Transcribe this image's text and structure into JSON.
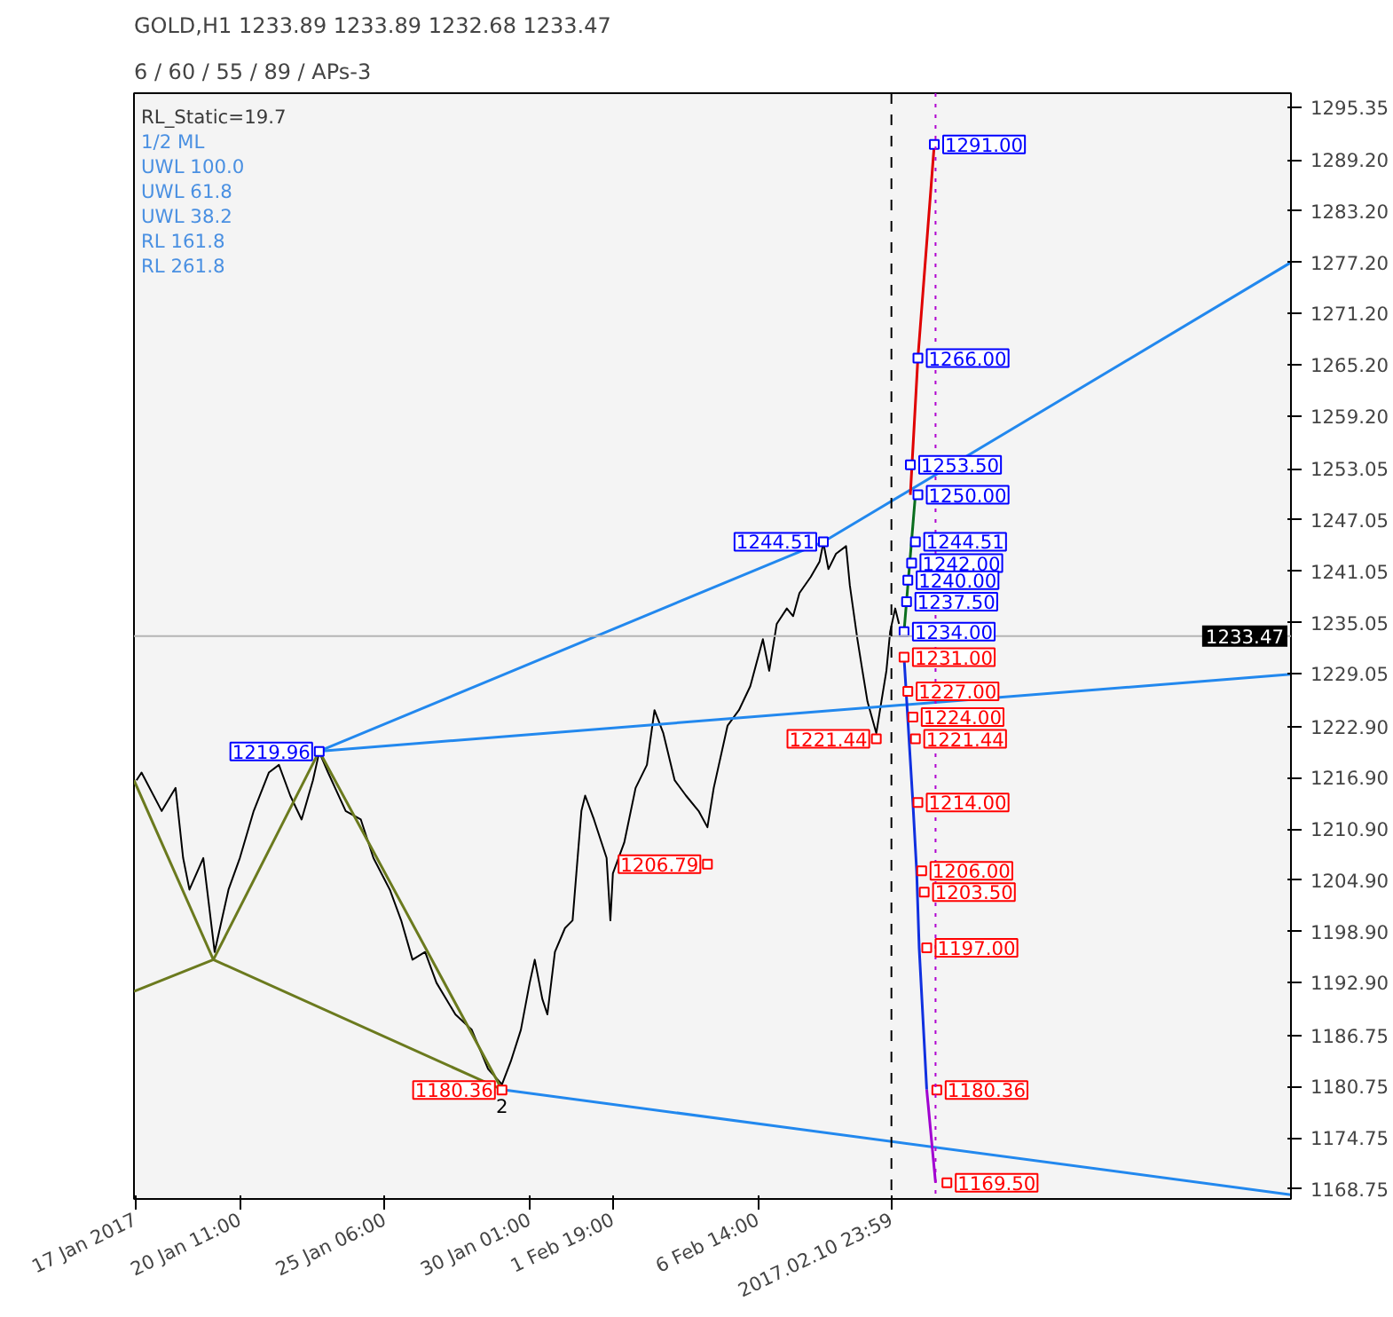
{
  "chart_data": {
    "type": "line",
    "title": "GOLD,H1  1233.89 1233.89 1232.68 1233.47",
    "subtitle": "6 / 60 / 55 / 89 / APs-3",
    "annotations": [
      "RL_Static=19.7",
      "1/2 ML",
      "UWL 100.0",
      "UWL 61.8",
      "UWL 38.2",
      "RL 161.8",
      "RL 261.8",
      {
        "text": "2",
        "x": "2017-01-29T03:00",
        "y": 1180.36
      }
    ],
    "xlim": [
      "2017-01-16T23:00",
      "2017-02-24T05:00"
    ],
    "ylim": [
      1167.6,
      1297.0
    ],
    "xticks": [
      {
        "value": "2017-01-17T00:00",
        "label": "17 Jan 2017"
      },
      {
        "value": "2017-01-20T11:00",
        "label": "20 Jan 11:00"
      },
      {
        "value": "2017-01-25T06:00",
        "label": "25 Jan 06:00"
      },
      {
        "value": "2017-01-30T01:00",
        "label": "30 Jan 01:00"
      },
      {
        "value": "2017-02-01T19:00",
        "label": "1 Feb 19:00"
      },
      {
        "value": "2017-02-06T14:00",
        "label": "6 Feb 14:00"
      },
      {
        "value": "2017-02-10T23:59",
        "label": "2017.02.10 23:59"
      }
    ],
    "yticks": [
      {
        "value": 1295.35,
        "label": "1295.35"
      },
      {
        "value": 1289.2,
        "label": "1289.20"
      },
      {
        "value": 1283.2,
        "label": "1283.20"
      },
      {
        "value": 1277.2,
        "label": "1277.20"
      },
      {
        "value": 1271.2,
        "label": "1271.20"
      },
      {
        "value": 1265.2,
        "label": "1265.20"
      },
      {
        "value": 1259.2,
        "label": "1259.20"
      },
      {
        "value": 1253.05,
        "label": "1253.05"
      },
      {
        "value": 1247.05,
        "label": "1247.05"
      },
      {
        "value": 1241.05,
        "label": "1241.05"
      },
      {
        "value": 1235.05,
        "label": "1235.05"
      },
      {
        "value": 1229.05,
        "label": "1229.05"
      },
      {
        "value": 1222.9,
        "label": "1222.90"
      },
      {
        "value": 1216.9,
        "label": "1216.90"
      },
      {
        "value": 1210.9,
        "label": "1210.90"
      },
      {
        "value": 1204.9,
        "label": "1204.90"
      },
      {
        "value": 1198.9,
        "label": "1198.90"
      },
      {
        "value": 1192.9,
        "label": "1192.90"
      },
      {
        "value": 1186.75,
        "label": "1186.75"
      },
      {
        "value": 1180.75,
        "label": "1180.75"
      },
      {
        "value": 1174.75,
        "label": "1174.75"
      },
      {
        "value": 1168.75,
        "label": "1168.75"
      }
    ],
    "grid": false,
    "ref_lines": [
      {
        "axis": "y",
        "value": 1233.47,
        "label": "1233.47",
        "color": "#b4b4b4",
        "line_style": "solid"
      },
      {
        "axis": "x",
        "value": "2017-02-10T23:59",
        "label": null,
        "color": "#000000",
        "line_style": "dashed"
      },
      {
        "axis": "x",
        "value": "2017-02-12T11:00",
        "label": null,
        "color": "#b000d0",
        "line_style": "dotted"
      }
    ],
    "series": [
      {
        "color": "#000000",
        "x": [
          "2017-01-17T01:00",
          "2017-01-17T05:00",
          "2017-01-17T21:00",
          "2017-01-18T08:00",
          "2017-01-18T14:00",
          "2017-01-18T19:00",
          "2017-01-19T06:00",
          "2017-01-19T15:00",
          "2017-01-20T02:00",
          "2017-01-20T11:00",
          "2017-01-20T22:00",
          "2017-01-21T10:00",
          "2017-01-21T18:00",
          "2017-01-22T03:00",
          "2017-01-22T12:00",
          "2017-01-22T21:00",
          "2017-01-23T02:00",
          "2017-01-23T09:00",
          "2017-01-23T23:00",
          "2017-01-24T11:00",
          "2017-01-24T21:00",
          "2017-01-25T10:00",
          "2017-01-25T19:00",
          "2017-01-26T04:00",
          "2017-01-26T14:00",
          "2017-01-26T23:00",
          "2017-01-27T14:00",
          "2017-01-28T03:00",
          "2017-01-28T16:00",
          "2017-01-29T03:00",
          "2017-01-29T10:00",
          "2017-01-29T18:00",
          "2017-01-30T01:00",
          "2017-01-30T05:00",
          "2017-01-30T11:00",
          "2017-01-30T15:00",
          "2017-01-30T21:00",
          "2017-01-31T05:00",
          "2017-01-31T11:00",
          "2017-01-31T14:00",
          "2017-01-31T18:00",
          "2017-01-31T21:00",
          "2017-02-01T04:00",
          "2017-02-01T10:00",
          "2017-02-01T14:00",
          "2017-02-01T17:00",
          "2017-02-01T19:00",
          "2017-02-02T04:00",
          "2017-02-02T13:00",
          "2017-02-02T22:00",
          "2017-02-03T04:00",
          "2017-02-03T11:00",
          "2017-02-03T20:00",
          "2017-02-04T05:00",
          "2017-02-04T15:00",
          "2017-02-04T22:00",
          "2017-02-05T03:00",
          "2017-02-05T14:00",
          "2017-02-05T23:00",
          "2017-02-06T08:00",
          "2017-02-06T18:00",
          "2017-02-06T23:00",
          "2017-02-07T05:00",
          "2017-02-07T13:00",
          "2017-02-07T18:00",
          "2017-02-07T23:00",
          "2017-02-08T08:00",
          "2017-02-08T15:00",
          "2017-02-08T18:00",
          "2017-02-08T22:00",
          "2017-02-09T04:00",
          "2017-02-09T12:00",
          "2017-02-09T15:00",
          "2017-02-09T21:00",
          "2017-02-10T01:00",
          "2017-02-10T05:00",
          "2017-02-10T12:00",
          "2017-02-10T16:00",
          "2017-02-10T20:00",
          "2017-02-10T23:00",
          "2017-02-11T03:00",
          "2017-02-11T06:00"
        ],
        "values": [
          1216.6,
          1217.5,
          1213.0,
          1215.7,
          1207.5,
          1203.8,
          1207.5,
          1196.5,
          1203.8,
          1207.5,
          1213.0,
          1217.5,
          1218.4,
          1214.8,
          1212.0,
          1216.6,
          1219.9,
          1217.5,
          1213.0,
          1212.0,
          1207.5,
          1203.8,
          1200.2,
          1195.6,
          1196.5,
          1192.9,
          1189.2,
          1187.4,
          1182.8,
          1181.0,
          1183.7,
          1187.4,
          1192.9,
          1195.6,
          1191.0,
          1189.2,
          1196.5,
          1199.3,
          1200.2,
          1205.7,
          1213.0,
          1214.8,
          1212.0,
          1209.3,
          1207.5,
          1200.2,
          1205.7,
          1209.3,
          1215.7,
          1218.4,
          1224.8,
          1222.1,
          1216.6,
          1214.8,
          1213.0,
          1211.1,
          1215.7,
          1223.0,
          1224.8,
          1227.6,
          1233.1,
          1229.4,
          1234.9,
          1236.7,
          1235.8,
          1238.5,
          1240.4,
          1242.2,
          1244.4,
          1241.3,
          1243.1,
          1244.0,
          1239.4,
          1233.1,
          1229.4,
          1225.8,
          1222.1,
          1225.8,
          1229.4,
          1234.0,
          1236.7,
          1234.9
        ]
      },
      {
        "color": "#6b7a1e",
        "x": [
          "2017-01-16T23:00",
          "2017-01-19T14:00",
          "2017-01-23T02:00",
          "2017-01-29T03:00"
        ],
        "values": [
          1216.6,
          1195.6,
          1220.0,
          1180.4
        ]
      },
      {
        "color": "#6b7a1e",
        "x": [
          "2017-01-16T23:00",
          "2017-01-19T14:00",
          "2017-01-29T03:00"
        ],
        "values": [
          1191.9,
          1195.6,
          1180.4
        ]
      },
      {
        "color": "#2288ee",
        "x": [
          "2017-01-23T02:00",
          "2017-02-08T18:00",
          "2017-02-24T05:00"
        ],
        "values": [
          1220.0,
          1244.5,
          1277.2
        ]
      },
      {
        "color": "#2288ee",
        "x": [
          "2017-01-23T02:00",
          "2017-02-24T05:00"
        ],
        "values": [
          1220.0,
          1229.0
        ]
      },
      {
        "color": "#2288ee",
        "x": [
          "2017-01-29T03:00",
          "2017-02-24T05:00"
        ],
        "values": [
          1180.4,
          1168.1
        ]
      },
      {
        "color": "#e00000",
        "x": [
          "2017-02-11T15:00",
          "2017-02-11T21:00",
          "2017-02-12T10:00"
        ],
        "values": [
          1250.0,
          1266.0,
          1291.0
        ]
      },
      {
        "color": "#0a6e1e",
        "x": [
          "2017-02-11T10:00",
          "2017-02-11T19:00"
        ],
        "values": [
          1234.0,
          1250.0
        ]
      },
      {
        "color": "#1030e0",
        "x": [
          "2017-02-11T10:00",
          "2017-02-11T17:00",
          "2017-02-11T20:00",
          "2017-02-11T22:00",
          "2017-02-12T04:00"
        ],
        "values": [
          1231.0,
          1214.0,
          1206.0,
          1197.0,
          1180.4
        ]
      },
      {
        "color": "#a000d0",
        "x": [
          "2017-02-12T04:00",
          "2017-02-12T11:00"
        ],
        "values": [
          1180.4,
          1169.5
        ]
      },
      {
        "type": "scatter",
        "marker": "square",
        "color": "#0000ff",
        "x": [
          "2017-01-23T02:00",
          "2017-02-08T18:00",
          "2017-02-12T10:00",
          "2017-02-11T21:00",
          "2017-02-11T15:00",
          "2017-02-11T21:00",
          "2017-02-11T19:00",
          "2017-02-11T16:00",
          "2017-02-11T13:00",
          "2017-02-11T12:00",
          "2017-02-11T10:00"
        ],
        "values": [
          1219.96,
          1244.51,
          1291.0,
          1266.0,
          1253.5,
          1250.0,
          1244.51,
          1242.0,
          1240.0,
          1237.5,
          1234.0
        ],
        "value_labels": [
          "1219.96",
          "1244.51",
          "1291.00",
          "1266.00",
          "1253.50",
          "1250.00",
          "1244.51",
          "1242.00",
          "1240.00",
          "1237.50",
          "1234.00"
        ]
      },
      {
        "type": "scatter",
        "marker": "square",
        "color": "#ff0000",
        "x": [
          "2017-02-04T22:00",
          "2017-01-29T03:00",
          "2017-02-10T12:00",
          "2017-02-11T10:00",
          "2017-02-11T13:00",
          "2017-02-11T17:00",
          "2017-02-11T19:00",
          "2017-02-11T21:00",
          "2017-02-12T00:00",
          "2017-02-12T02:00",
          "2017-02-12T04:00",
          "2017-02-12T12:00",
          "2017-02-12T20:00"
        ],
        "values": [
          1206.79,
          1180.36,
          1221.44,
          1231.0,
          1227.0,
          1224.0,
          1221.44,
          1214.0,
          1206.0,
          1203.5,
          1197.0,
          1180.36,
          1169.5
        ],
        "value_labels": [
          "1206.79",
          "1180.36",
          "1221.44",
          "1231.00",
          "1227.00",
          "1224.00",
          "1221.44",
          "1214.00",
          "1206.00",
          "1203.50",
          "1197.00",
          "1180.36",
          "1169.50"
        ]
      }
    ]
  }
}
